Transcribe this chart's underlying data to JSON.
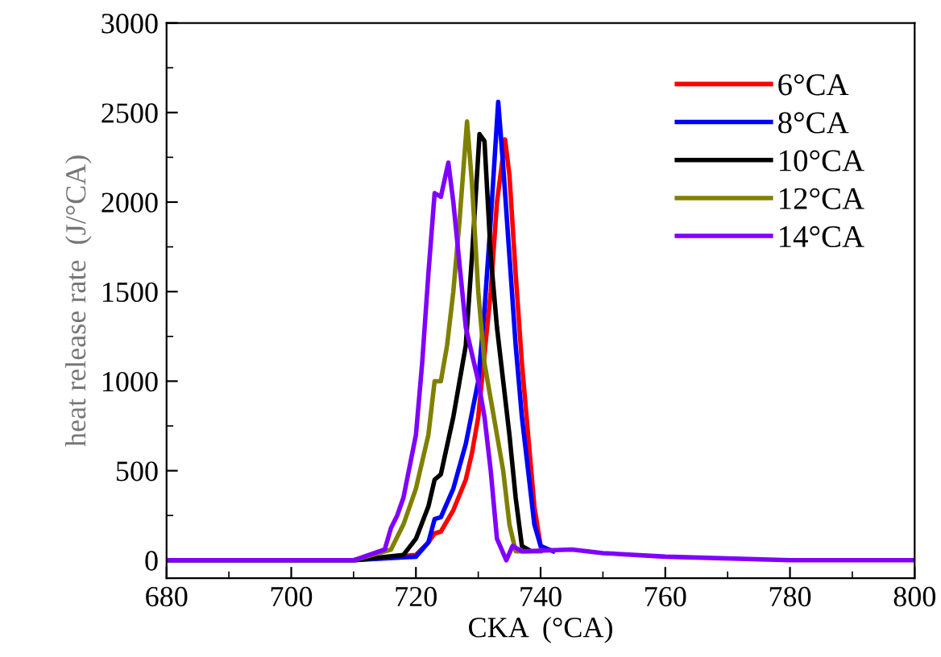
{
  "chart_data": {
    "type": "line",
    "xlabel": "CKA  (°CA)",
    "ylabel": "heat release rate  (J/°CA)",
    "xlim": [
      680,
      800
    ],
    "ylim": [
      -100,
      3000
    ],
    "xticks": [
      680,
      700,
      720,
      740,
      760,
      780,
      800
    ],
    "yticks": [
      0,
      500,
      1000,
      1500,
      2000,
      2500,
      3000
    ],
    "legend": "top right",
    "grid": false,
    "series": [
      {
        "name": "6°CA",
        "color": "#ff0000",
        "x": [
          680,
          710,
          720,
          722,
          723,
          724,
          726,
          728,
          729,
          730,
          732,
          733,
          734.3,
          735,
          736,
          737,
          738,
          739,
          740
        ],
        "values": [
          0,
          0,
          30,
          100,
          150,
          160,
          280,
          450,
          600,
          800,
          1500,
          2000,
          2350,
          2150,
          1600,
          1100,
          700,
          300,
          80
        ]
      },
      {
        "name": "8°CA",
        "color": "#0000ff",
        "x": [
          680,
          710,
          720,
          722,
          723,
          724,
          726,
          728,
          730,
          731,
          732,
          733.2,
          734,
          735,
          736,
          737,
          738,
          739,
          740,
          742
        ],
        "values": [
          0,
          0,
          20,
          100,
          230,
          240,
          400,
          650,
          1000,
          1400,
          1900,
          2560,
          2200,
          1700,
          1200,
          800,
          500,
          200,
          80,
          50
        ]
      },
      {
        "name": "10°CA",
        "color": "#000000",
        "x": [
          680,
          710,
          718,
          720,
          722,
          723,
          724,
          726,
          728,
          729,
          730.2,
          731,
          732,
          733,
          734,
          735,
          736,
          737,
          738
        ],
        "values": [
          0,
          0,
          30,
          120,
          300,
          450,
          480,
          800,
          1200,
          1700,
          2380,
          2340,
          1700,
          1300,
          1000,
          700,
          350,
          80,
          60
        ]
      },
      {
        "name": "12°CA",
        "color": "#808000",
        "x": [
          680,
          710,
          716,
          718,
          720,
          722,
          723,
          724,
          725,
          726,
          727,
          728.2,
          729,
          730,
          731,
          732,
          733,
          734,
          735,
          736,
          740
        ],
        "values": [
          0,
          0,
          60,
          200,
          400,
          700,
          1000,
          1000,
          1200,
          1500,
          1900,
          2450,
          2100,
          1500,
          1100,
          900,
          700,
          500,
          200,
          50,
          50
        ]
      },
      {
        "name": "14°CA",
        "color": "#8000ff",
        "x": [
          680,
          710,
          715,
          716,
          717,
          718,
          720,
          721,
          722,
          723,
          724,
          725.2,
          726,
          727,
          728,
          729,
          730,
          731,
          732,
          733,
          734.5,
          735.5,
          737,
          745,
          750,
          760,
          780,
          800
        ],
        "values": [
          0,
          0,
          60,
          180,
          250,
          350,
          700,
          1100,
          1600,
          2050,
          2030,
          2220,
          2000,
          1650,
          1300,
          1150,
          1000,
          800,
          500,
          120,
          0,
          80,
          50,
          60,
          40,
          20,
          0,
          0
        ]
      }
    ]
  }
}
